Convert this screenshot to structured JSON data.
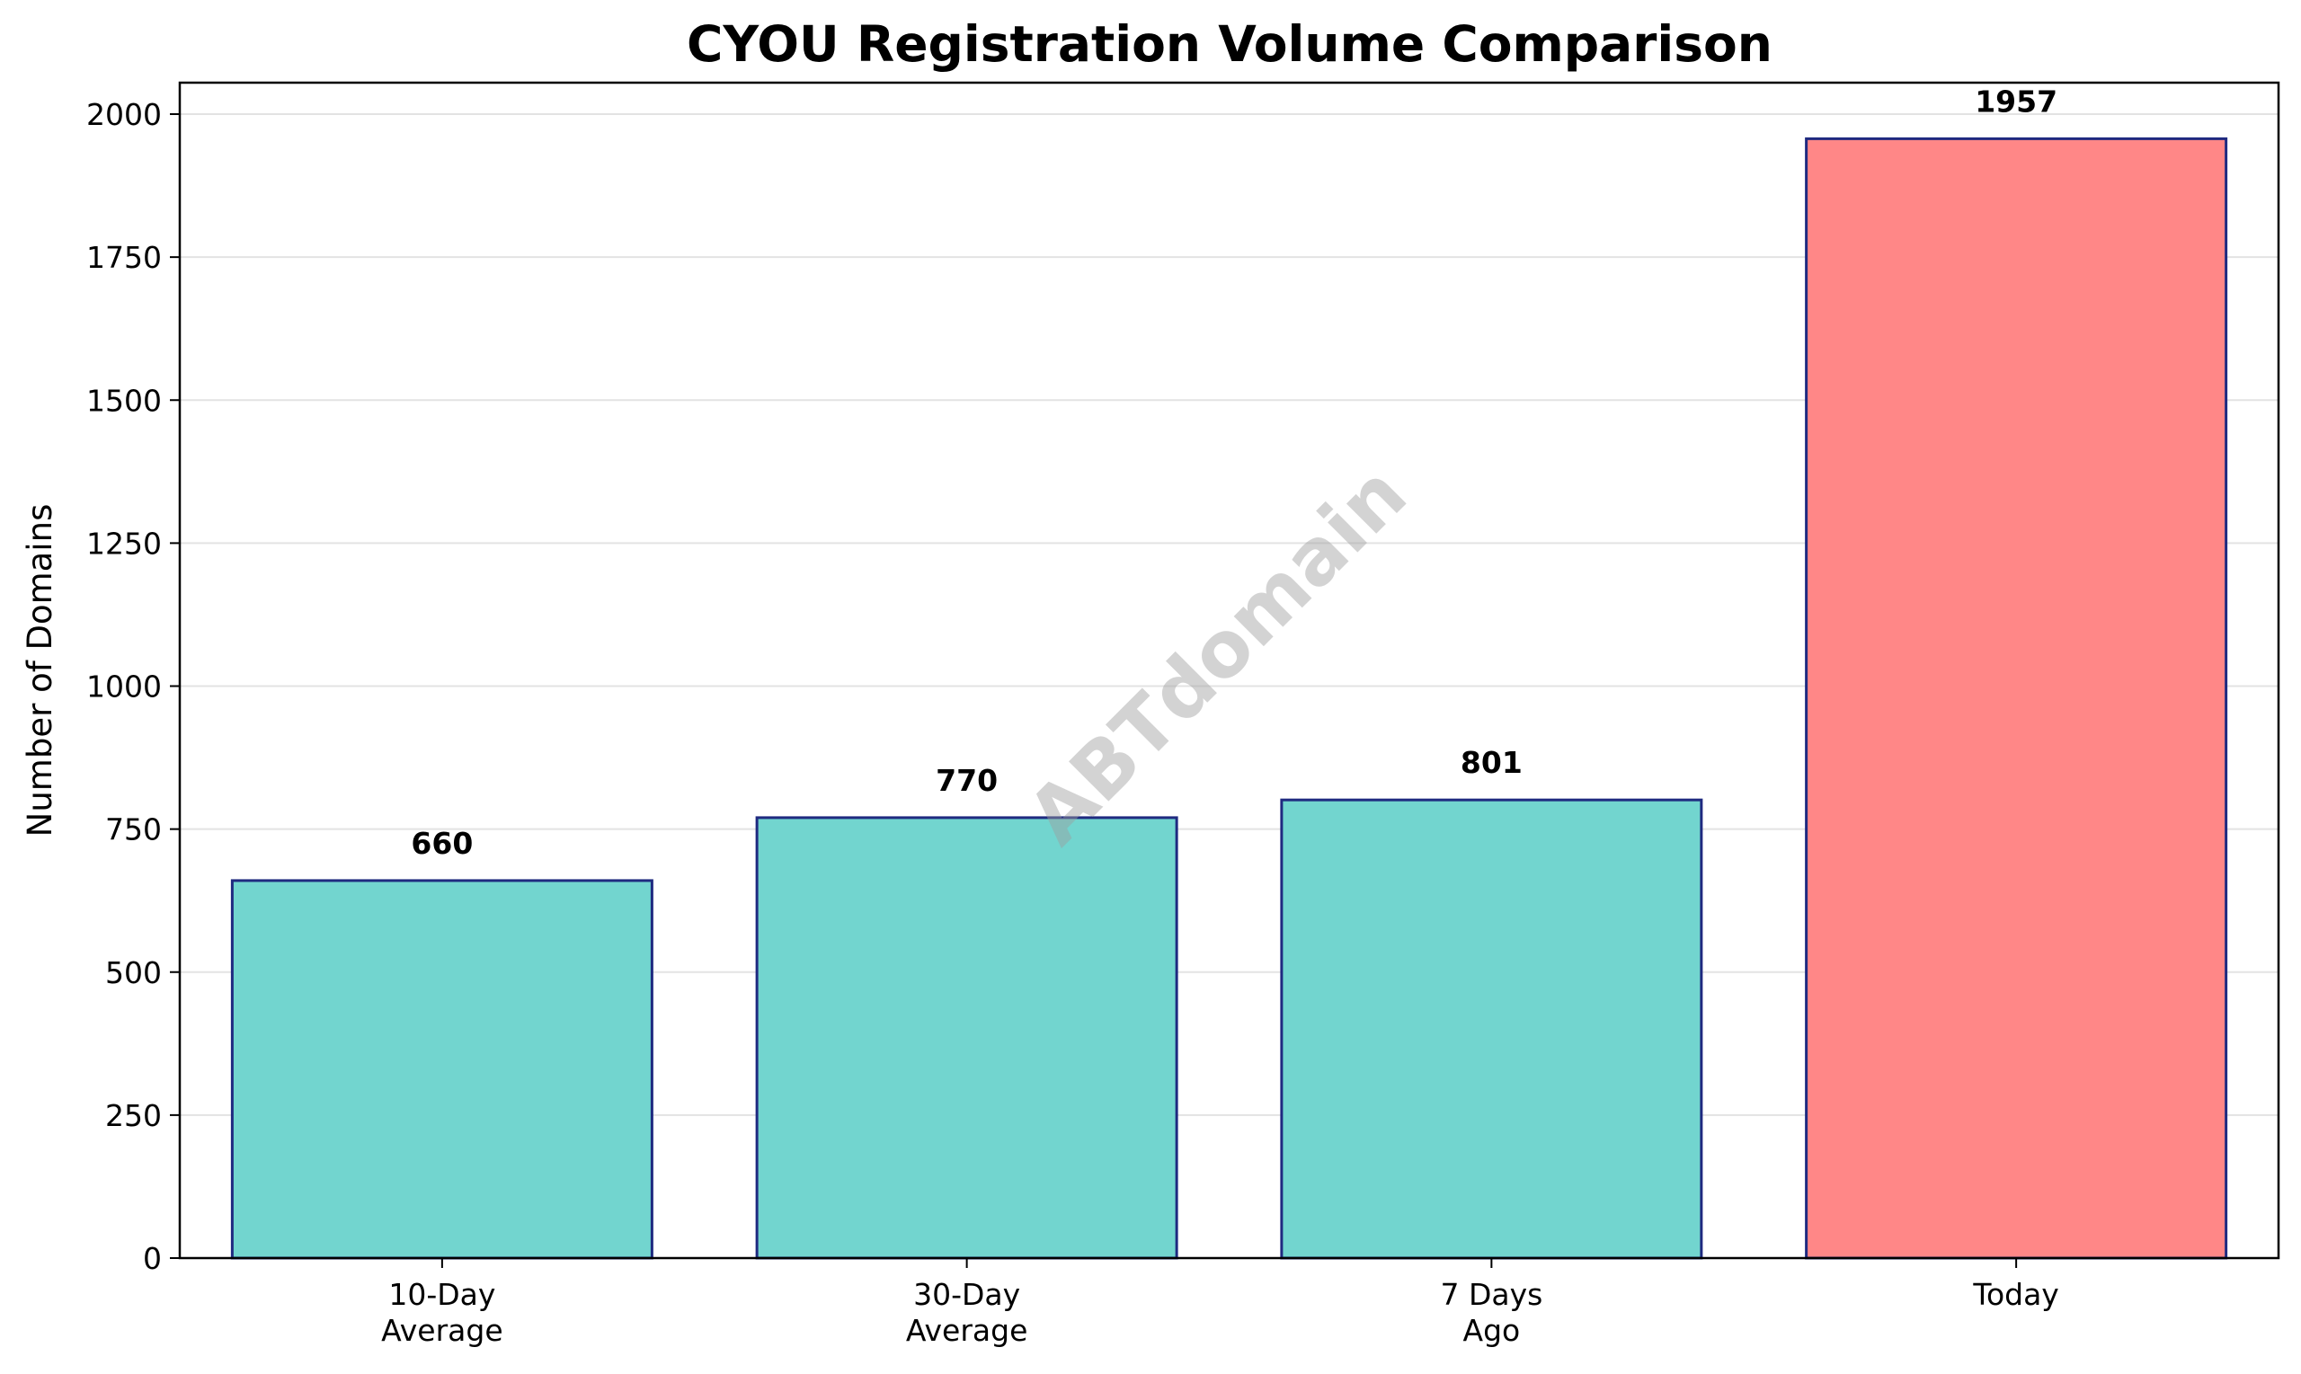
{
  "chart_data": {
    "type": "bar",
    "title": "CYOU Registration Volume Comparison",
    "xlabel": "",
    "ylabel": "Number of Domains",
    "categories": [
      [
        "10-Day",
        "Average"
      ],
      [
        "30-Day",
        "Average"
      ],
      [
        "7 Days",
        "Ago"
      ],
      [
        "Today"
      ]
    ],
    "values": [
      660,
      770,
      801,
      1957
    ],
    "data_labels": [
      "660",
      "770",
      "801",
      "1957"
    ],
    "bar_colors": [
      "#72d5cf",
      "#72d5cf",
      "#72d5cf",
      "#ff8787"
    ],
    "bar_edge_color": "#1f2a80",
    "ylim": [
      0,
      2055
    ],
    "yticks": [
      0,
      250,
      500,
      750,
      1000,
      1250,
      1500,
      1750,
      2000
    ],
    "grid": "y",
    "watermark": "ABTdomain"
  }
}
